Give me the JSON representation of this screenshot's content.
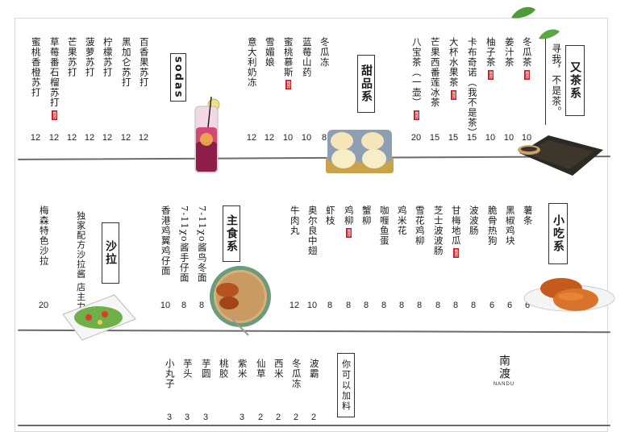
{
  "sodas": {
    "title": "sodas",
    "items": [
      {
        "name": "百香果苏打",
        "price": "12"
      },
      {
        "name": "黑加仑苏打",
        "price": "12"
      },
      {
        "name": "柠檬苏打",
        "price": "12"
      },
      {
        "name": "菠萝苏打",
        "price": "12"
      },
      {
        "name": "芒果苏打",
        "price": "12"
      },
      {
        "name": "草莓番石榴苏打",
        "price": "12",
        "seal": "推荐"
      },
      {
        "name": "蜜桃香橙苏打",
        "price": "12"
      }
    ]
  },
  "desserts": {
    "title": "甜品系",
    "items": [
      {
        "name": "冬瓜冻",
        "price": "8"
      },
      {
        "name": "蓝莓山药",
        "price": "10"
      },
      {
        "name": "蜜桃慕斯",
        "price": "10",
        "seal": "推荐"
      },
      {
        "name": "雪媚娘",
        "price": "12"
      },
      {
        "name": "意大利奶冻",
        "price": "12"
      }
    ]
  },
  "teas": {
    "title": "又茶系",
    "subtitle": "寻我，不是茶。",
    "items": [
      {
        "name": "冬瓜茶",
        "price": "10",
        "seal": "推荐"
      },
      {
        "name": "姜汁茶",
        "price": "10"
      },
      {
        "name": "柚子茶",
        "price": "10",
        "seal": "推荐"
      },
      {
        "name": "卡布奇诺（我不是茶）",
        "price": "15"
      },
      {
        "name": "大杯水果茶",
        "price": "15",
        "seal": "推荐"
      },
      {
        "name": "芒果西番莲冰茶",
        "price": "15"
      },
      {
        "name": "八宝茶（一壶）",
        "price": "20",
        "seal": "推荐"
      }
    ]
  },
  "snacks": {
    "title": "小吃系",
    "items": [
      {
        "name": "薯条",
        "price": "6"
      },
      {
        "name": "黑椒鸡块",
        "price": "6"
      },
      {
        "name": "脆骨热狗",
        "price": "6"
      },
      {
        "name": "波波肠",
        "price": "8"
      },
      {
        "name": "甘梅地瓜",
        "price": "8",
        "seal": "推荐"
      },
      {
        "name": "芝士波波肠",
        "price": "8"
      },
      {
        "name": "雪花鸡柳",
        "price": "8"
      },
      {
        "name": "鸡米花",
        "price": "8"
      },
      {
        "name": "咖喱鱼蛋",
        "price": "8"
      },
      {
        "name": "蟹柳",
        "price": "8"
      },
      {
        "name": "鸡柳",
        "price": "8",
        "seal": "推荐"
      },
      {
        "name": "虾枝",
        "price": "8"
      },
      {
        "name": "奥尔良中翅",
        "price": "10"
      },
      {
        "name": "牛肉丸",
        "price": "12"
      }
    ]
  },
  "mains": {
    "title": "主食系",
    "items": [
      {
        "name": "7-11χο酱鸟冬面",
        "price": "8"
      },
      {
        "name": "7-11χο酱手仔面",
        "price": "8"
      },
      {
        "name": "香港鸡翼鸡仔面",
        "price": "10"
      }
    ]
  },
  "salads": {
    "title": "沙拉",
    "subtitle": "独家配方沙拉酱 店主力推",
    "items": [
      {
        "name": "梅森特色沙拉",
        "price": "20"
      }
    ]
  },
  "toppings": {
    "title": "你可以加料",
    "items": [
      {
        "name": "波霸",
        "price": "2"
      },
      {
        "name": "冬瓜冻",
        "price": "2"
      },
      {
        "name": "西米",
        "price": "2"
      },
      {
        "name": "仙草",
        "price": "2"
      },
      {
        "name": "紫米",
        "price": "3"
      },
      {
        "name": "桃胶",
        "price": ""
      },
      {
        "name": "芋圆",
        "price": "3"
      },
      {
        "name": "芋头",
        "price": "3"
      },
      {
        "name": "小丸子",
        "price": "3"
      }
    ]
  },
  "brand": {
    "name": "南渡",
    "latin": "NANDU"
  },
  "colors": {
    "seal": "#c41e24",
    "ink": "#1a1a1a",
    "rule": "#6a6a6a"
  }
}
